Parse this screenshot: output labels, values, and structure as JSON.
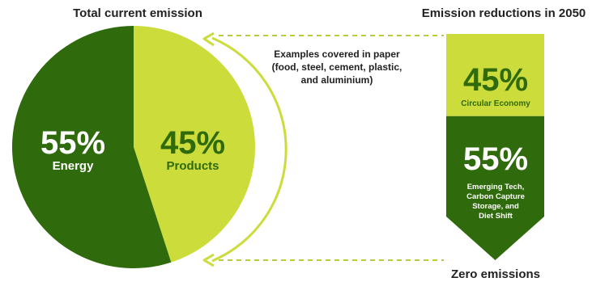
{
  "colors": {
    "dark_green": "#2f6a0c",
    "light_green": "#cbdc3b",
    "connector": "#b5cf3a",
    "text": "#222222",
    "white": "#ffffff"
  },
  "chart_data": [
    {
      "type": "pie",
      "title": "Total current emission",
      "slices": [
        {
          "label": "Energy",
          "value": 55,
          "value_label": "55%",
          "color": "#2f6a0c"
        },
        {
          "label": "Products",
          "value": 45,
          "value_label": "45%",
          "color": "#cbdc3b"
        }
      ]
    },
    {
      "type": "bar",
      "title": "Emission reductions in 2050",
      "stacked": true,
      "segments": [
        {
          "label": "Circular Economy",
          "value": 45,
          "value_label": "45%",
          "color": "#cbdc3b"
        },
        {
          "label_lines": [
            "Emerging Tech,",
            "Carbon Capture",
            "Storage, and",
            "Diet Shift"
          ],
          "value": 55,
          "value_label": "55%",
          "color": "#2f6a0c"
        }
      ],
      "end_label": "Zero emissions"
    }
  ],
  "annotation": {
    "lines": [
      "Examples covered in paper",
      "(food, steel, cement, plastic,",
      "and aluminium)"
    ]
  }
}
